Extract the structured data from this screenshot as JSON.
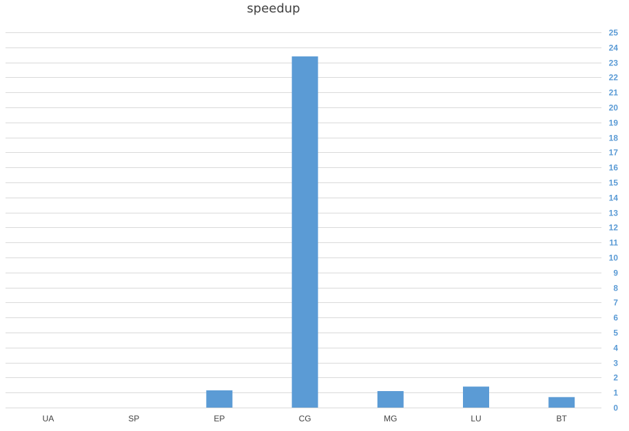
{
  "chart_data": {
    "type": "bar",
    "title": "speedup",
    "categories": [
      "UA",
      "SP",
      "EP",
      "CG",
      "MG",
      "LU",
      "BT"
    ],
    "series": [
      {
        "values": [
          0,
          0,
          1.15,
          23.4,
          1.1,
          1.4,
          0.7
        ]
      }
    ],
    "ylim": [
      0,
      25
    ],
    "y_ticks": [
      0,
      1,
      2,
      3,
      4,
      5,
      6,
      7,
      8,
      9,
      10,
      11,
      12,
      13,
      14,
      15,
      16,
      17,
      18,
      19,
      20,
      21,
      22,
      23,
      24,
      25
    ],
    "y_axis_side": "right",
    "grid": true,
    "legend": "none",
    "colors": {
      "bar": "#5b9bd5",
      "y_tick_label": "#5b9bd5",
      "grid": "#d9d9d9",
      "text": "#404040"
    }
  }
}
